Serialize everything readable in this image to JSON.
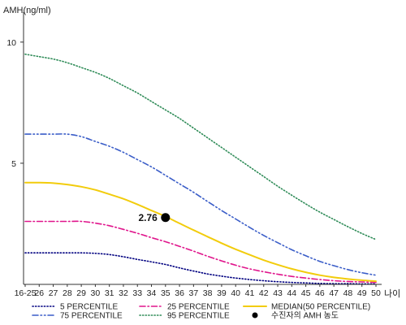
{
  "chart_data": {
    "type": "line",
    "ylabel": "AMH(ng/ml)",
    "xlabel": "나이",
    "categories": [
      "16-25",
      "26",
      "27",
      "28",
      "29",
      "30",
      "31",
      "32",
      "33",
      "34",
      "35",
      "36",
      "37",
      "38",
      "39",
      "40",
      "41",
      "42",
      "43",
      "44",
      "45",
      "46",
      "47",
      "48",
      "49",
      "50"
    ],
    "ylim": [
      0,
      11
    ],
    "yticks": [
      5,
      10
    ],
    "grid": false,
    "legend_position": "bottom",
    "series": [
      {
        "name": "5 PERCENTILE",
        "color": "#000080",
        "dash": "dot",
        "values": [
          1.3,
          1.3,
          1.3,
          1.3,
          1.3,
          1.28,
          1.23,
          1.14,
          1.03,
          0.93,
          0.82,
          0.68,
          0.55,
          0.43,
          0.34,
          0.26,
          0.2,
          0.15,
          0.11,
          0.08,
          0.06,
          0.04,
          0.03,
          0.03,
          0.02,
          0.02
        ]
      },
      {
        "name": "25 PERCENTILE",
        "color": "#e0158c",
        "dash": "dashdot",
        "values": [
          2.6,
          2.6,
          2.6,
          2.6,
          2.6,
          2.53,
          2.42,
          2.27,
          2.11,
          1.93,
          1.76,
          1.57,
          1.37,
          1.16,
          0.97,
          0.79,
          0.64,
          0.52,
          0.42,
          0.33,
          0.26,
          0.2,
          0.15,
          0.12,
          0.1,
          0.08
        ]
      },
      {
        "name": "MEDIAN(50 PERCENTILE)",
        "color": "#f2cc0c",
        "dash": "solid",
        "values": [
          4.2,
          4.2,
          4.18,
          4.12,
          4.03,
          3.9,
          3.72,
          3.53,
          3.3,
          3.05,
          2.8,
          2.52,
          2.24,
          1.97,
          1.7,
          1.45,
          1.22,
          1.0,
          0.81,
          0.64,
          0.5,
          0.38,
          0.29,
          0.22,
          0.17,
          0.13
        ]
      },
      {
        "name": "75 PERCENTILE",
        "color": "#3a5dc8",
        "dash": "dashdotdot",
        "values": [
          6.2,
          6.2,
          6.2,
          6.2,
          6.1,
          5.9,
          5.7,
          5.45,
          5.15,
          4.85,
          4.5,
          4.15,
          3.8,
          3.42,
          3.05,
          2.7,
          2.35,
          2.02,
          1.72,
          1.43,
          1.18,
          0.95,
          0.77,
          0.61,
          0.48,
          0.38
        ]
      },
      {
        "name": "95 PERCENTILE",
        "color": "#2e8b57",
        "dash": "dot",
        "values": [
          9.5,
          9.4,
          9.3,
          9.15,
          8.95,
          8.75,
          8.5,
          8.2,
          7.9,
          7.55,
          7.2,
          6.85,
          6.45,
          6.05,
          5.65,
          5.25,
          4.85,
          4.45,
          4.05,
          3.68,
          3.32,
          2.98,
          2.68,
          2.38,
          2.1,
          1.85
        ]
      }
    ],
    "highlight_point": {
      "x": "35",
      "value": 2.76,
      "label": "2.76",
      "legend": "수진자의 AMH 농도",
      "color": "#000000"
    }
  }
}
